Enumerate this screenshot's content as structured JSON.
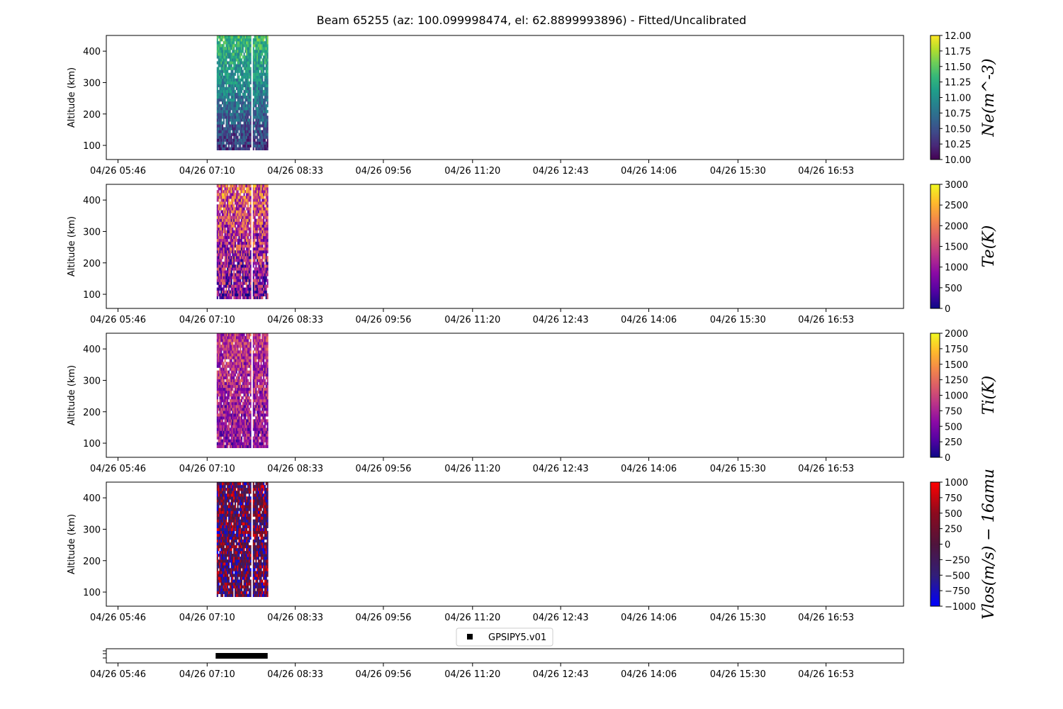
{
  "chart_data": {
    "type": "heatmap",
    "title": "Beam 65255 (az: 100.099998474, el: 62.8899993896) - Fitted/Uncalibrated",
    "time_axis": {
      "date": "04/26",
      "tick_labels": [
        "04/26 05:46",
        "04/26 07:10",
        "04/26 08:33",
        "04/26 09:56",
        "04/26 11:20",
        "04/26 12:43",
        "04/26 14:06",
        "04/26 15:30",
        "04/26 16:53"
      ],
      "tick_minutes": [
        346,
        430,
        513,
        596,
        680,
        763,
        846,
        930,
        1013
      ],
      "range_minutes": [
        335,
        1086
      ],
      "data_segments_minutes": [
        [
          439,
          471
        ],
        [
          473,
          487
        ]
      ]
    },
    "altitude_axis": {
      "label": "Altitude (km)",
      "ticks": [
        100,
        200,
        300,
        400
      ],
      "range": [
        55,
        450
      ],
      "data_range": [
        85,
        450
      ]
    },
    "panels": [
      {
        "parameter": "Ne",
        "colorbar_label": "Ne(m^-3)",
        "colormap": "viridis",
        "clim": [
          10.0,
          12.0
        ],
        "colorbar_ticks": [
          "10.00",
          "10.25",
          "10.50",
          "10.75",
          "11.00",
          "11.25",
          "11.50",
          "11.75",
          "12.00"
        ]
      },
      {
        "parameter": "Te",
        "colorbar_label": "Te(K)",
        "colormap": "plasma",
        "clim": [
          0,
          3000
        ],
        "colorbar_ticks": [
          "0",
          "500",
          "1000",
          "1500",
          "2000",
          "2500",
          "3000"
        ]
      },
      {
        "parameter": "Ti",
        "colorbar_label": "Ti(K)",
        "colormap": "plasma",
        "clim": [
          0,
          2000
        ],
        "colorbar_ticks": [
          "0",
          "250",
          "500",
          "750",
          "1000",
          "1250",
          "1500",
          "1750",
          "2000"
        ]
      },
      {
        "parameter": "Vlos",
        "colorbar_label": "Vlos(m/s) − 16amu",
        "colormap": "blue-red",
        "clim": [
          -1000,
          1000
        ],
        "colorbar_ticks": [
          "−1000",
          "−750",
          "−500",
          "−250",
          "0",
          "250",
          "500",
          "750",
          "1000"
        ]
      }
    ],
    "mode_strip": {
      "legend": "GPSIPY5.v01",
      "coverage_minutes": [
        438,
        487
      ]
    }
  }
}
